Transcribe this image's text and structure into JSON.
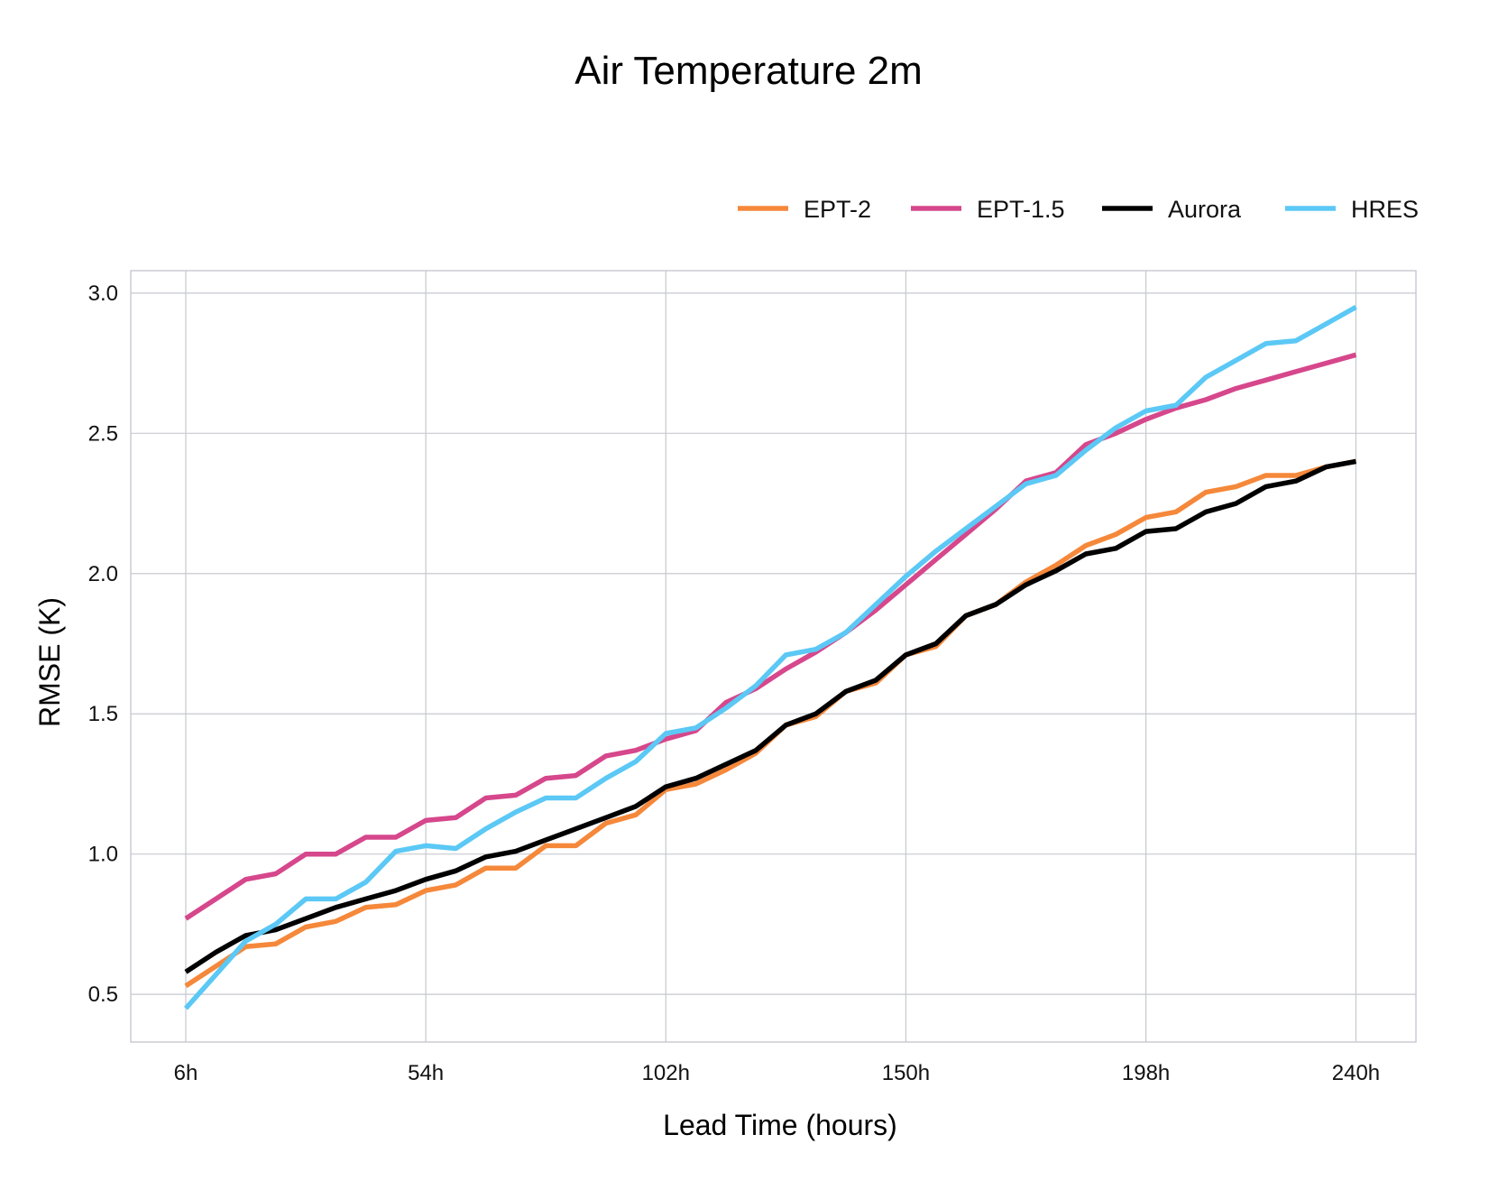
{
  "chart_data": {
    "type": "line",
    "title": "Air Temperature 2m",
    "xlabel": "Lead Time (hours)",
    "ylabel": "RMSE (K)",
    "ylim": [
      0.33,
      3.08
    ],
    "xlim": [
      -5,
      252
    ],
    "grid": true,
    "legend_position": "top-right",
    "x_ticks": [
      6,
      54,
      102,
      150,
      198,
      240
    ],
    "x_tick_labels": [
      "6h",
      "54h",
      "102h",
      "150h",
      "198h",
      "240h"
    ],
    "y_ticks": [
      0.5,
      1.0,
      1.5,
      2.0,
      2.5,
      3.0
    ],
    "y_tick_labels": [
      "0.5",
      "1.0",
      "1.5",
      "2.0",
      "2.5",
      "3.0"
    ],
    "x": [
      6,
      12,
      18,
      24,
      30,
      36,
      42,
      48,
      54,
      60,
      66,
      72,
      78,
      84,
      90,
      96,
      102,
      108,
      114,
      120,
      126,
      132,
      138,
      144,
      150,
      156,
      162,
      168,
      174,
      180,
      186,
      192,
      198,
      204,
      210,
      216,
      222,
      228,
      234,
      240
    ],
    "series": [
      {
        "name": "EPT-2",
        "color": "#f5883a",
        "values": [
          0.53,
          0.6,
          0.67,
          0.68,
          0.74,
          0.76,
          0.81,
          0.82,
          0.87,
          0.89,
          0.95,
          0.95,
          1.03,
          1.03,
          1.11,
          1.14,
          1.23,
          1.25,
          1.3,
          1.36,
          1.46,
          1.49,
          1.58,
          1.61,
          1.71,
          1.74,
          1.85,
          1.89,
          1.97,
          2.03,
          2.1,
          2.14,
          2.2,
          2.22,
          2.29,
          2.31,
          2.35,
          2.35,
          2.38,
          2.4
        ]
      },
      {
        "name": "EPT-1.5",
        "color": "#d6478c",
        "values": [
          0.77,
          0.84,
          0.91,
          0.93,
          1.0,
          1.0,
          1.06,
          1.06,
          1.12,
          1.13,
          1.2,
          1.21,
          1.27,
          1.28,
          1.35,
          1.37,
          1.41,
          1.44,
          1.54,
          1.59,
          1.66,
          1.72,
          1.79,
          1.87,
          1.96,
          2.05,
          2.14,
          2.23,
          2.33,
          2.36,
          2.46,
          2.5,
          2.55,
          2.59,
          2.62,
          2.66,
          2.69,
          2.72,
          2.75,
          2.78
        ]
      },
      {
        "name": "Aurora",
        "color": "#000000",
        "values": [
          0.58,
          0.65,
          0.71,
          0.73,
          0.77,
          0.81,
          0.84,
          0.87,
          0.91,
          0.94,
          0.99,
          1.01,
          1.05,
          1.09,
          1.13,
          1.17,
          1.24,
          1.27,
          1.32,
          1.37,
          1.46,
          1.5,
          1.58,
          1.62,
          1.71,
          1.75,
          1.85,
          1.89,
          1.96,
          2.01,
          2.07,
          2.09,
          2.15,
          2.16,
          2.22,
          2.25,
          2.31,
          2.33,
          2.38,
          2.4
        ]
      },
      {
        "name": "HRES",
        "color": "#5bc8f5",
        "values": [
          0.45,
          0.57,
          0.69,
          0.75,
          0.84,
          0.84,
          0.9,
          1.01,
          1.03,
          1.02,
          1.09,
          1.15,
          1.2,
          1.2,
          1.27,
          1.33,
          1.43,
          1.45,
          1.52,
          1.6,
          1.71,
          1.73,
          1.79,
          1.89,
          1.99,
          2.08,
          2.16,
          2.24,
          2.32,
          2.35,
          2.44,
          2.52,
          2.58,
          2.6,
          2.7,
          2.76,
          2.82,
          2.83,
          2.89,
          2.95
        ]
      }
    ]
  }
}
